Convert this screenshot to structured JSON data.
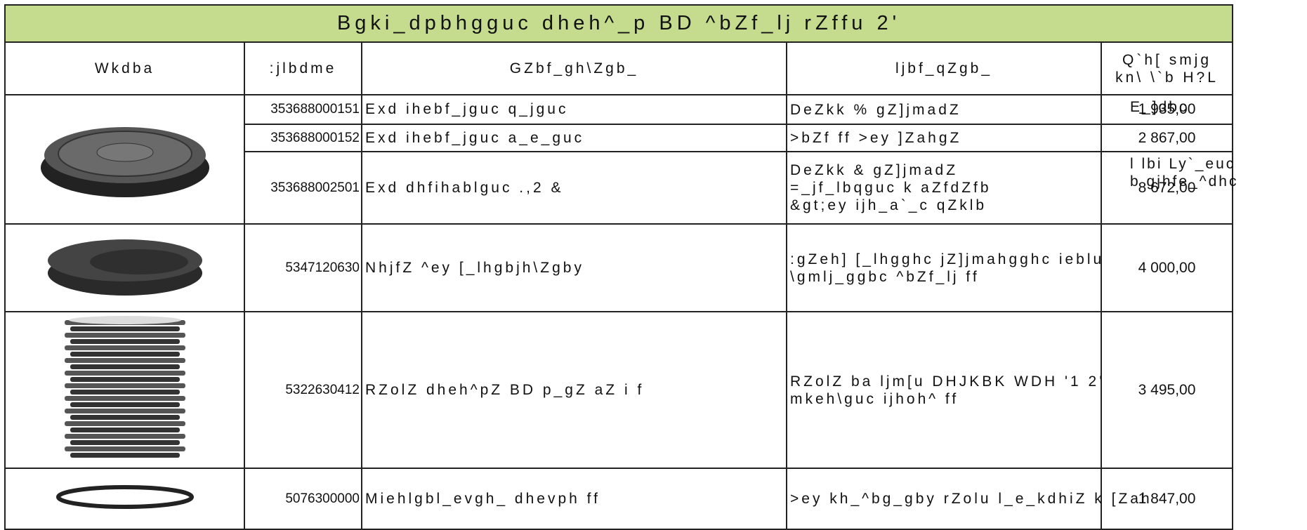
{
  "header": {
    "title": "Bgki_dpbhgguc dheh^_p BD      ^bZf_lj rZffu 2'"
  },
  "table": {
    "columns": [
      "Wkdba",
      ":jlbdme",
      "GZbf_gh\\Zgb_",
      "ljbf_qZgb_",
      [
        "Q`h[   smjg",
        "kn\\  \\`b H?L"
      ]
    ],
    "rows": [
      {
        "code": "353688000151",
        "name": "Exd ihebf_jguc q_jguc",
        "note": [
          "DeZkk %     gZ]jmadZ"
        ],
        "price": "1 935,00",
        "extra": [
          "E_]dbc"
        ]
      },
      {
        "code": "353688000152",
        "name": "Exd ihebf_jguc a_e_guc",
        "note": [
          ">bZf      ff  >ey ]ZahgZ"
        ],
        "price": "2 867,00"
      },
      {
        "code": "353688002501",
        "name": "Exd dhfihablguc .,2        &",
        "note": [
          "DeZkk &     gZ]jmadZ",
          "=_jf_lbqguc  k aZfdZfb",
          "&gt;ey ijh_a`_c qZklb"
        ],
        "price": "8 672,00",
        "extra": [
          "l  lbi Ly`_euc",
          "b gjhfe_^dhc"
        ]
      },
      {
        "code": "5347120630",
        "name": "NhjfZ ^ey [_lhgbjh\\Zgby",
        "note": [
          ":gZeh] [_lhgghc jZ]jmahgghc ieblu",
          "\\gmlj_ggbc ^bZf_lj      ff"
        ],
        "price": "4 000,00"
      },
      {
        "code": "5322630412",
        "name": "RZolZ dheh^pZ BD        p_gZ aZ i  f",
        "note": [
          "RZolZ ba ljm[u DHJKBK  WDH '1 2'",
          "mkeh\\guc ijhoh^       ff"
        ],
        "price": "3 495,00"
      },
      {
        "code": "5076300000",
        "name": "Miehlgbl_evgh_ dhevph       ff",
        "note": [
          ">ey kh_^bg_gby rZolu l_e_kdhiZ k [Zah"
        ],
        "price": "1 847,00"
      }
    ]
  }
}
